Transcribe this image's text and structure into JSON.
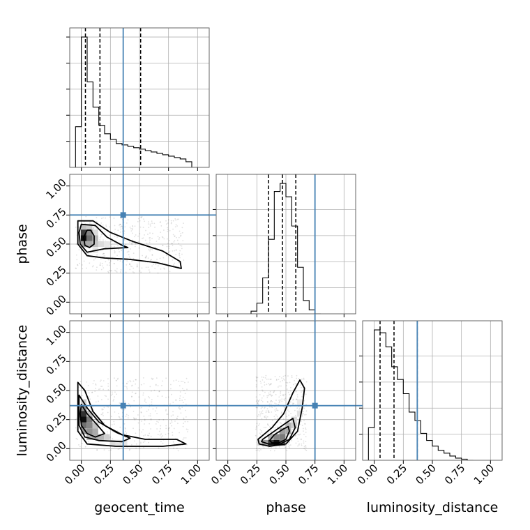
{
  "chart_data": {
    "type": "corner",
    "parameters": [
      "geocent_time",
      "phase",
      "luminosity_distance"
    ],
    "axis_labels": {
      "bottom": [
        "geocent_time",
        "phase",
        "luminosity_distance"
      ],
      "left": [
        "phase",
        "luminosity_distance"
      ]
    },
    "range": [
      -0.1,
      1.1
    ],
    "tick_values": [
      0.0,
      0.25,
      0.5,
      0.75,
      1.0
    ],
    "tick_labels": [
      "0.00",
      "0.25",
      "0.50",
      "0.75",
      "1.00"
    ],
    "truths": [
      0.36,
      0.75,
      0.37
    ],
    "truth_color": "#4682b4",
    "grid": true,
    "histograms": [
      {
        "parameter": "geocent_time",
        "bin_edges": [
          -0.05,
          0.0,
          0.05,
          0.1,
          0.15,
          0.2,
          0.25,
          0.3,
          0.35,
          0.4,
          0.45,
          0.5,
          0.55,
          0.6,
          0.65,
          0.7,
          0.75,
          0.8,
          0.85,
          0.9,
          0.95,
          1.0
        ],
        "counts": [
          0.29,
          0.93,
          0.61,
          0.43,
          0.3,
          0.24,
          0.2,
          0.17,
          0.16,
          0.15,
          0.14,
          0.13,
          0.12,
          0.11,
          0.1,
          0.09,
          0.08,
          0.07,
          0.06,
          0.04,
          0.0
        ],
        "quantile_lines": [
          0.035,
          0.16,
          0.51
        ],
        "ytick_values": [
          0.2,
          0.4,
          0.6,
          0.8,
          1.0
        ]
      },
      {
        "parameter": "phase",
        "bin_edges": [
          0.2,
          0.25,
          0.3,
          0.35,
          0.4,
          0.45,
          0.5,
          0.55,
          0.6,
          0.65,
          0.7,
          0.75,
          0.8
        ],
        "counts": [
          0.02,
          0.08,
          0.27,
          0.56,
          0.92,
          0.98,
          0.88,
          0.66,
          0.35,
          0.1,
          0.03,
          0.0
        ],
        "quantile_lines": [
          0.35,
          0.47,
          0.585
        ],
        "ytick_values": [
          0.2,
          0.4,
          0.6,
          0.8
        ]
      },
      {
        "parameter": "luminosity_distance",
        "bin_edges": [
          -0.05,
          0.0,
          0.05,
          0.1,
          0.15,
          0.2,
          0.25,
          0.3,
          0.35,
          0.4,
          0.45,
          0.5,
          0.55,
          0.6,
          0.65,
          0.7,
          0.75,
          0.8,
          0.85
        ],
        "counts": [
          0.23,
          0.92,
          0.9,
          0.8,
          0.66,
          0.57,
          0.47,
          0.34,
          0.28,
          0.19,
          0.14,
          0.1,
          0.07,
          0.05,
          0.03,
          0.015,
          0.008,
          0.0
        ],
        "quantile_lines": [
          0.05,
          0.17,
          0.37
        ],
        "ytick_values": [
          0.2,
          0.4,
          0.6,
          0.8
        ]
      }
    ],
    "joint_2d": [
      {
        "x": "geocent_time",
        "y": "phase",
        "density_cells": [
          [
            0.02,
            0.55,
            1.0
          ],
          [
            0.02,
            0.6,
            0.8
          ],
          [
            0.07,
            0.55,
            0.6
          ],
          [
            0.07,
            0.6,
            0.5
          ],
          [
            0.02,
            0.5,
            0.4
          ],
          [
            0.07,
            0.5,
            0.35
          ],
          [
            0.12,
            0.55,
            0.3
          ],
          [
            0.12,
            0.5,
            0.25
          ],
          [
            0.02,
            0.65,
            0.25
          ],
          [
            0.07,
            0.65,
            0.2
          ],
          [
            0.17,
            0.5,
            0.15
          ],
          [
            0.12,
            0.6,
            0.15
          ],
          [
            0.22,
            0.5,
            0.1
          ],
          [
            0.12,
            0.45,
            0.1
          ]
        ],
        "contours": [
          [
            [
              0.05,
              0.62
            ],
            [
              0.08,
              0.62
            ],
            [
              0.11,
              0.57
            ],
            [
              0.11,
              0.5
            ],
            [
              0.07,
              0.47
            ],
            [
              0.03,
              0.49
            ],
            [
              0.02,
              0.56
            ]
          ],
          [
            [
              0.0,
              0.67
            ],
            [
              0.12,
              0.66
            ],
            [
              0.22,
              0.56
            ],
            [
              0.35,
              0.49
            ],
            [
              0.4,
              0.47
            ],
            [
              0.2,
              0.46
            ],
            [
              0.05,
              0.43
            ],
            [
              -0.01,
              0.5
            ],
            [
              -0.02,
              0.6
            ]
          ],
          [
            [
              -0.03,
              0.7
            ],
            [
              0.1,
              0.7
            ],
            [
              0.25,
              0.6
            ],
            [
              0.45,
              0.52
            ],
            [
              0.7,
              0.44
            ],
            [
              0.85,
              0.35
            ],
            [
              0.86,
              0.29
            ],
            [
              0.65,
              0.34
            ],
            [
              0.4,
              0.37
            ],
            [
              0.2,
              0.38
            ],
            [
              0.05,
              0.4
            ],
            [
              -0.03,
              0.5
            ]
          ]
        ]
      },
      {
        "x": "geocent_time",
        "y": "luminosity_distance",
        "density_cells": [
          [
            0.02,
            0.25,
            1.0
          ],
          [
            0.02,
            0.3,
            0.85
          ],
          [
            0.02,
            0.2,
            0.6
          ],
          [
            0.07,
            0.25,
            0.55
          ],
          [
            0.07,
            0.2,
            0.5
          ],
          [
            0.07,
            0.15,
            0.45
          ],
          [
            0.02,
            0.35,
            0.45
          ],
          [
            0.02,
            0.15,
            0.4
          ],
          [
            0.12,
            0.15,
            0.35
          ],
          [
            0.12,
            0.1,
            0.35
          ],
          [
            0.17,
            0.1,
            0.3
          ],
          [
            0.07,
            0.1,
            0.3
          ],
          [
            0.22,
            0.1,
            0.2
          ],
          [
            0.27,
            0.05,
            0.15
          ],
          [
            0.12,
            0.2,
            0.25
          ],
          [
            0.07,
            0.3,
            0.25
          ],
          [
            0.02,
            0.4,
            0.2
          ],
          [
            0.32,
            0.05,
            0.12
          ],
          [
            0.37,
            0.05,
            0.1
          ]
        ],
        "contours": [
          [
            [
              0.0,
              0.38
            ],
            [
              0.05,
              0.3
            ],
            [
              0.14,
              0.2
            ],
            [
              0.2,
              0.13
            ],
            [
              0.12,
              0.1
            ],
            [
              0.05,
              0.13
            ],
            [
              0.0,
              0.2
            ],
            [
              -0.01,
              0.3
            ]
          ],
          [
            [
              -0.02,
              0.46
            ],
            [
              0.05,
              0.35
            ],
            [
              0.15,
              0.23
            ],
            [
              0.3,
              0.14
            ],
            [
              0.42,
              0.09
            ],
            [
              0.35,
              0.06
            ],
            [
              0.15,
              0.07
            ],
            [
              0.03,
              0.1
            ],
            [
              -0.02,
              0.2
            ]
          ],
          [
            [
              -0.03,
              0.57
            ],
            [
              0.03,
              0.5
            ],
            [
              0.1,
              0.32
            ],
            [
              0.2,
              0.2
            ],
            [
              0.35,
              0.12
            ],
            [
              0.55,
              0.08
            ],
            [
              0.82,
              0.08
            ],
            [
              0.9,
              0.04
            ],
            [
              0.7,
              0.02
            ],
            [
              0.3,
              0.02
            ],
            [
              0.05,
              0.04
            ],
            [
              -0.03,
              0.15
            ]
          ]
        ]
      },
      {
        "x": "phase",
        "y": "luminosity_distance",
        "density_cells": [
          [
            0.42,
            0.05,
            1.0
          ],
          [
            0.37,
            0.05,
            0.8
          ],
          [
            0.47,
            0.05,
            0.6
          ],
          [
            0.42,
            0.1,
            0.5
          ],
          [
            0.47,
            0.1,
            0.55
          ],
          [
            0.47,
            0.15,
            0.4
          ],
          [
            0.52,
            0.15,
            0.35
          ],
          [
            0.52,
            0.2,
            0.3
          ],
          [
            0.32,
            0.05,
            0.4
          ],
          [
            0.37,
            0.1,
            0.3
          ],
          [
            0.57,
            0.2,
            0.2
          ],
          [
            0.57,
            0.25,
            0.15
          ],
          [
            0.27,
            0.05,
            0.15
          ],
          [
            0.62,
            0.3,
            0.12
          ],
          [
            0.62,
            0.4,
            0.08
          ]
        ],
        "contours": [
          [
            [
              0.36,
              0.07
            ],
            [
              0.4,
              0.12
            ],
            [
              0.48,
              0.17
            ],
            [
              0.52,
              0.19
            ],
            [
              0.53,
              0.15
            ],
            [
              0.5,
              0.08
            ],
            [
              0.44,
              0.05
            ],
            [
              0.38,
              0.05
            ]
          ],
          [
            [
              0.3,
              0.08
            ],
            [
              0.4,
              0.15
            ],
            [
              0.5,
              0.22
            ],
            [
              0.56,
              0.26
            ],
            [
              0.58,
              0.18
            ],
            [
              0.53,
              0.08
            ],
            [
              0.45,
              0.04
            ],
            [
              0.35,
              0.04
            ],
            [
              0.29,
              0.06
            ]
          ],
          [
            [
              0.26,
              0.08
            ],
            [
              0.38,
              0.18
            ],
            [
              0.48,
              0.3
            ],
            [
              0.56,
              0.48
            ],
            [
              0.62,
              0.59
            ],
            [
              0.66,
              0.52
            ],
            [
              0.64,
              0.35
            ],
            [
              0.6,
              0.15
            ],
            [
              0.5,
              0.04
            ],
            [
              0.36,
              0.02
            ],
            [
              0.27,
              0.04
            ]
          ]
        ]
      }
    ]
  }
}
